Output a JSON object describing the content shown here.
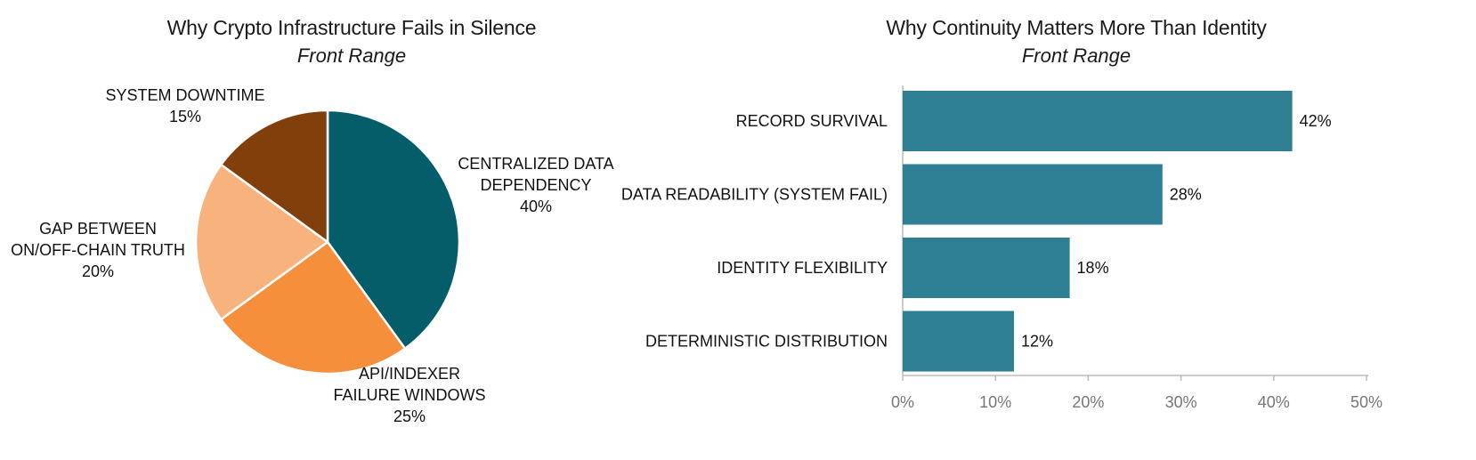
{
  "chart_data": [
    {
      "type": "pie",
      "title": "Why Crypto Infrastructure Fails in Silence",
      "subtitle": "Front Range",
      "slices": [
        {
          "label_lines": [
            "CENTRALIZED DATA",
            "DEPENDENCY"
          ],
          "value": 40,
          "value_label": "40%",
          "color": "#045d68"
        },
        {
          "label_lines": [
            "API/INDEXER",
            "FAILURE WINDOWS"
          ],
          "value": 25,
          "value_label": "25%",
          "color": "#f58f3b"
        },
        {
          "label_lines": [
            "GAP BETWEEN",
            "ON/OFF-CHAIN TRUTH"
          ],
          "value": 20,
          "value_label": "20%",
          "color": "#f7b27d"
        },
        {
          "label_lines": [
            "SYSTEM DOWNTIME"
          ],
          "value": 15,
          "value_label": "15%",
          "color": "#803f0b"
        }
      ]
    },
    {
      "type": "bar",
      "orientation": "horizontal",
      "title": "Why Continuity Matters More Than Identity",
      "subtitle": "Front Range",
      "categories": [
        "RECORD SURVIVAL",
        "DATA READABILITY (SYSTEM FAIL)",
        "IDENTITY FLEXIBILITY",
        "DETERMINISTIC DISTRIBUTION"
      ],
      "values": [
        42,
        28,
        18,
        12
      ],
      "value_labels": [
        "42%",
        "28%",
        "18%",
        "12%"
      ],
      "xlim": [
        0,
        50
      ],
      "xticks": [
        0,
        10,
        20,
        30,
        40,
        50
      ],
      "xtick_labels": [
        "0%",
        "10%",
        "20%",
        "30%",
        "40%",
        "50%"
      ],
      "bar_color": "#2e7f93",
      "grid": false
    }
  ]
}
